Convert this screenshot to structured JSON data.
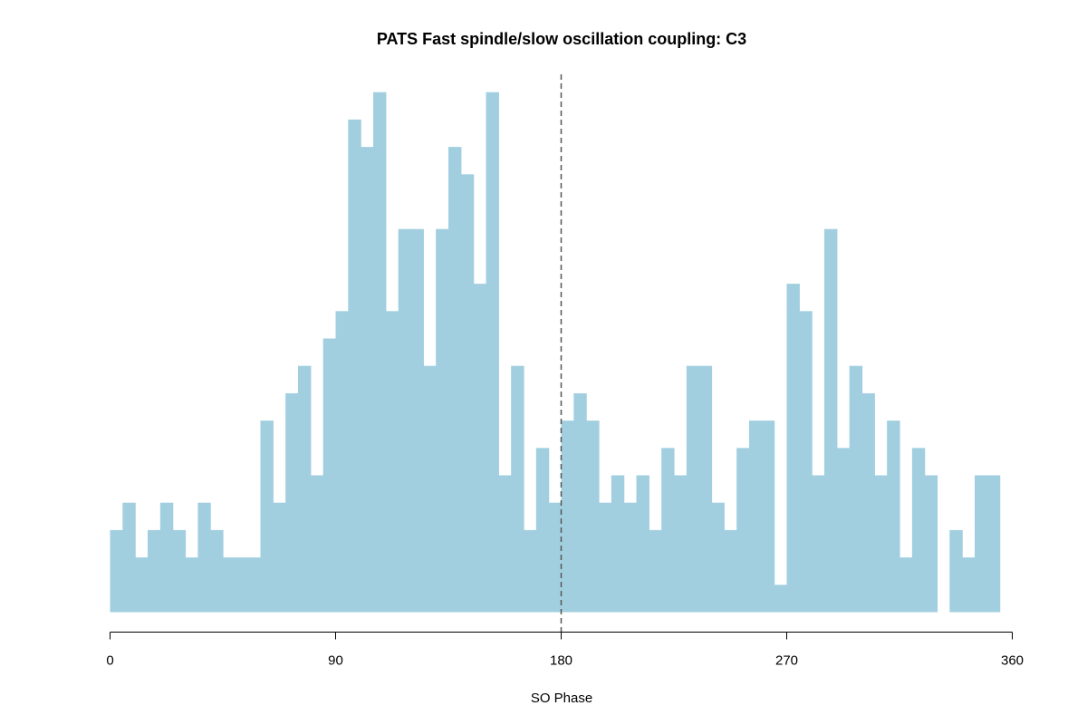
{
  "chart_data": {
    "type": "bar",
    "title": "PATS Fast spindle/slow oscillation coupling: C3",
    "xlabel": "SO Phase",
    "ylabel": "",
    "xlim": [
      0,
      360
    ],
    "bin_width": 5,
    "x_ticks": [
      "0",
      "90",
      "180",
      "270",
      "360"
    ],
    "x_tick_values": [
      0,
      90,
      180,
      270,
      360
    ],
    "y_axis_shown": false,
    "reference_line": {
      "x": 180,
      "style": "dashed"
    },
    "bar_color": "#a2cfe0",
    "grid": false,
    "bins_start": [
      0,
      5,
      10,
      15,
      20,
      25,
      30,
      35,
      40,
      45,
      50,
      55,
      60,
      65,
      70,
      75,
      80,
      85,
      90,
      95,
      100,
      105,
      110,
      115,
      120,
      125,
      130,
      135,
      140,
      145,
      150,
      155,
      160,
      165,
      170,
      175,
      180,
      185,
      190,
      195,
      200,
      205,
      210,
      215,
      220,
      225,
      230,
      235,
      240,
      245,
      250,
      255,
      260,
      265,
      270,
      275,
      280,
      285,
      290,
      295,
      300,
      305,
      310,
      315,
      320,
      325,
      330,
      335,
      340,
      345,
      350
    ],
    "values": [
      3,
      4,
      2,
      3,
      4,
      3,
      2,
      4,
      3,
      2,
      2,
      2,
      7,
      4,
      8,
      9,
      5,
      10,
      11,
      18,
      17,
      19,
      11,
      14,
      14,
      9,
      14,
      17,
      16,
      12,
      19,
      5,
      9,
      3,
      6,
      4,
      7,
      8,
      7,
      4,
      5,
      4,
      5,
      3,
      6,
      5,
      9,
      9,
      4,
      3,
      6,
      7,
      7,
      1,
      12,
      11,
      5,
      14,
      6,
      9,
      8,
      5,
      7,
      2,
      6,
      5,
      0,
      3,
      2,
      5,
      5
    ]
  }
}
